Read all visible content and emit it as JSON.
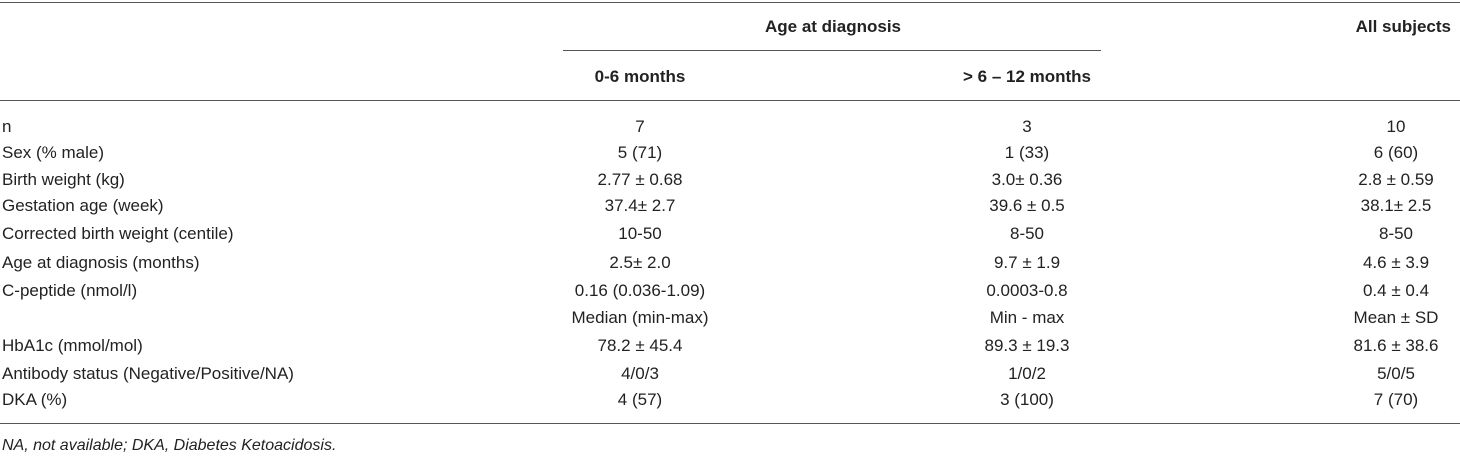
{
  "table": {
    "header": {
      "group": "Age at diagnosis",
      "all": "All subjects",
      "columns": [
        "0-6 months",
        "> 6 – 12 months"
      ]
    },
    "rows": [
      [
        "n",
        "7",
        "3",
        "10"
      ],
      [
        "Sex (% male)",
        "5 (71)",
        "1 (33)",
        "6 (60)"
      ],
      [
        "Birth weight (kg)",
        "2.77 ± 0.68",
        "3.0± 0.36",
        "2.8 ± 0.59"
      ],
      [
        "Gestation age (week)",
        "37.4± 2.7",
        "39.6 ± 0.5",
        "38.1± 2.5"
      ],
      [
        "Corrected birth weight (centile)",
        "10-50",
        "8-50",
        "8-50"
      ],
      [
        "Age at diagnosis (months)",
        "2.5± 2.0",
        "9.7 ± 1.9",
        "4.6 ± 3.9"
      ],
      [
        "C-peptide (nmol/l)",
        "0.16 (0.036-1.09)",
        "0.0003-0.8",
        "0.4 ± 0.4"
      ],
      [
        null,
        "Median (min-max)",
        "Min - max",
        "Mean ± SD"
      ],
      [
        "HbA1c (mmol/mol)",
        "78.2 ± 45.4",
        "89.3 ± 19.3",
        "81.6 ± 38.6"
      ],
      [
        "Antibody status (Negative/Positive/NA)",
        "4/0/3",
        "1/0/2",
        "5/0/5"
      ],
      [
        "DKA (%)",
        "4 (57)",
        "3 (100)",
        "7 (70)"
      ]
    ],
    "footnote": "NA, not available; DKA, Diabetes Ketoacidosis."
  }
}
